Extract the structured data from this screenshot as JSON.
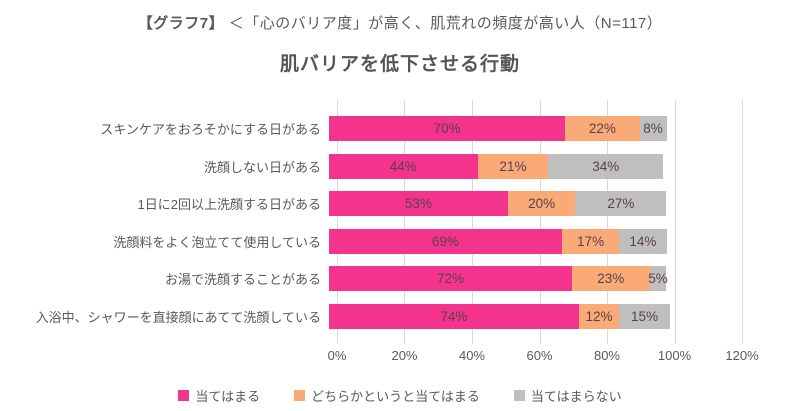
{
  "header": {
    "title_prefix": "【グラフ7】",
    "title_rest": "＜「心のバリア度」が高く、肌荒れの頻度が高い人（N=117）",
    "subtitle": "肌バリアを低下させる行動"
  },
  "chart_data": {
    "type": "bar",
    "orientation": "horizontal",
    "stacked": true,
    "title": "肌バリアを低下させる行動",
    "categories": [
      "スキンケアをおろそかにする日がある",
      "洗顔しない日がある",
      "1日に2回以上洗顔する日がある",
      "洗顔料をよく泡立てて使用している",
      "お湯で洗顔することがある",
      "入浴中、シャワーを直接顔にあてて洗顔している"
    ],
    "series": [
      {
        "name": "当てはまる",
        "color": "#F3338C",
        "values": [
          70,
          44,
          53,
          69,
          72,
          74
        ]
      },
      {
        "name": "どちらかというと当てはまる",
        "color": "#F9AA77",
        "values": [
          22,
          21,
          20,
          17,
          23,
          12
        ]
      },
      {
        "name": "当てはまらない",
        "color": "#BFBFBF",
        "values": [
          8,
          34,
          27,
          14,
          5,
          15
        ]
      }
    ],
    "value_suffix": "%",
    "x_ticks": [
      "0%",
      "20%",
      "40%",
      "60%",
      "80%",
      "100%",
      "120%"
    ],
    "xlim": [
      0,
      120
    ],
    "grid": true,
    "legend_position": "bottom"
  },
  "colors": {
    "text": "#595959",
    "gridline": "#D9D9D9",
    "background": "#FFFFFF"
  }
}
